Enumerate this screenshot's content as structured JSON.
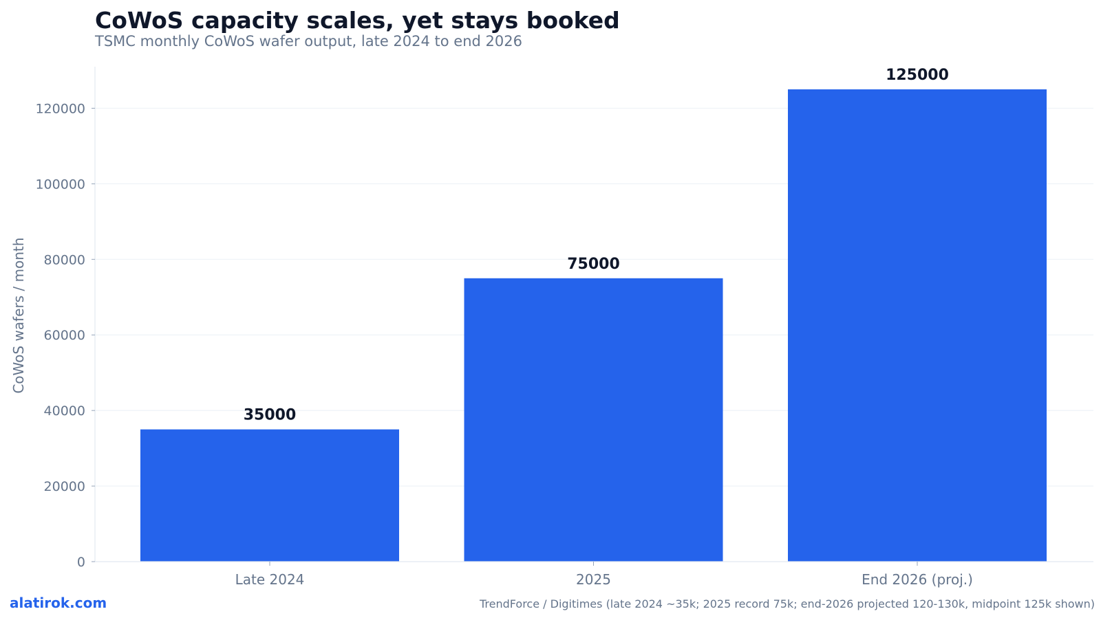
{
  "chart_data": {
    "type": "bar",
    "title": "CoWoS capacity scales, yet stays booked",
    "subtitle": "TSMC monthly CoWoS wafer output, late 2024 to end 2026",
    "xlabel": "",
    "ylabel": "CoWoS wafers / month",
    "categories": [
      "Late 2024",
      "2025",
      "End 2026 (proj.)"
    ],
    "values": [
      35000,
      75000,
      125000
    ],
    "data_labels": [
      "35000",
      "75000",
      "125000"
    ],
    "ylim": [
      0,
      131000
    ],
    "yticks": [
      0,
      20000,
      40000,
      60000,
      80000,
      100000,
      120000
    ],
    "ytick_labels": [
      "0",
      "20000",
      "40000",
      "60000",
      "80000",
      "100000",
      "120000"
    ],
    "grid": true,
    "legend": "none",
    "bar_color": "#2563eb"
  },
  "footer": {
    "brand": "alatirok.com",
    "brand_color": "#2563eb",
    "source": "TrendForce / Digitimes (late 2024 ~35k; 2025 record 75k; end-2026 projected 120-130k, midpoint 125k shown)"
  }
}
